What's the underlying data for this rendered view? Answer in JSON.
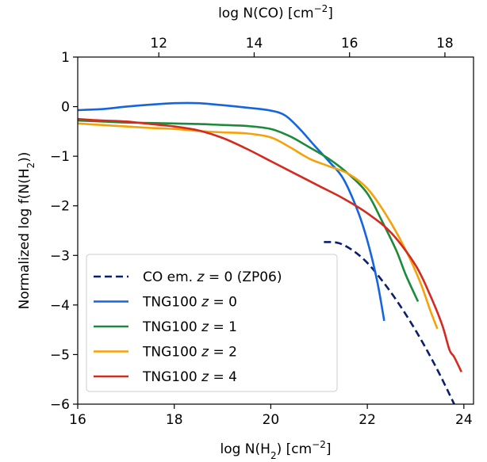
{
  "chart_data": {
    "type": "line",
    "xlabel_bottom": [
      "log N(H",
      "2",
      ") [cm",
      "−2",
      "]"
    ],
    "xlabel_top": [
      "log N(CO) [cm",
      "−2",
      "]"
    ],
    "ylabel": [
      "Normalized log f(N(H",
      "2",
      "))"
    ],
    "xlim": [
      16,
      24.2
    ],
    "ylim": [
      -6,
      1
    ],
    "top_xlim": [
      10.3,
      18.6
    ],
    "x_ticks": [
      16,
      18,
      20,
      22,
      24
    ],
    "x_tick_labels": [
      "16",
      "18",
      "20",
      "22",
      "24"
    ],
    "y_ticks": [
      1,
      0,
      -1,
      -2,
      -3,
      -4,
      -5,
      -6
    ],
    "y_tick_labels": [
      "1",
      "0",
      "−1",
      "−2",
      "−3",
      "−4",
      "−5",
      "−6"
    ],
    "top_ticks": [
      12,
      14,
      16,
      18
    ],
    "top_tick_labels": [
      "12",
      "14",
      "16",
      "18"
    ],
    "legend_position": "lower-left",
    "series": [
      {
        "name": "CO em. z = 0 (ZP06)",
        "legend": {
          "pre": "CO em. ",
          "var": "z",
          "post": " = 0 (ZP06)"
        },
        "color": "#0b1f6e",
        "dashed": true,
        "x": [
          21.1,
          21.4,
          21.7,
          22.0,
          22.3,
          22.6,
          22.9,
          23.2,
          23.5,
          23.8
        ],
        "y": [
          -2.73,
          -2.75,
          -2.9,
          -3.15,
          -3.5,
          -3.9,
          -4.35,
          -4.85,
          -5.4,
          -6.0
        ]
      },
      {
        "name": "TNG100 z = 0",
        "legend": {
          "pre": "TNG100 ",
          "var": "z",
          "post": " = 0"
        },
        "color": "#1565e0",
        "dashed": false,
        "x": [
          16.0,
          16.5,
          17.0,
          17.5,
          18.0,
          18.5,
          19.0,
          19.5,
          20.0,
          20.3,
          20.6,
          20.9,
          21.2,
          21.5,
          21.8,
          22.0,
          22.2,
          22.35
        ],
        "y": [
          -0.07,
          -0.05,
          0.0,
          0.04,
          0.07,
          0.07,
          0.03,
          -0.02,
          -0.08,
          -0.18,
          -0.45,
          -0.78,
          -1.1,
          -1.45,
          -2.1,
          -2.7,
          -3.5,
          -4.32
        ]
      },
      {
        "name": "TNG100 z = 1",
        "legend": {
          "pre": "TNG100 ",
          "var": "z",
          "post": " = 1"
        },
        "color": "#1b8a3a",
        "dashed": false,
        "x": [
          16.0,
          16.5,
          17.0,
          17.5,
          18.0,
          18.5,
          19.0,
          19.5,
          20.0,
          20.4,
          20.8,
          21.2,
          21.6,
          22.0,
          22.3,
          22.6,
          22.8,
          23.05
        ],
        "y": [
          -0.28,
          -0.3,
          -0.32,
          -0.33,
          -0.34,
          -0.35,
          -0.37,
          -0.39,
          -0.45,
          -0.6,
          -0.82,
          -1.05,
          -1.35,
          -1.75,
          -2.3,
          -2.9,
          -3.4,
          -3.93
        ]
      },
      {
        "name": "TNG100 z = 2",
        "legend": {
          "pre": "TNG100 ",
          "var": "z",
          "post": " = 2"
        },
        "color": "#f5a20a",
        "dashed": false,
        "x": [
          16.0,
          16.5,
          17.0,
          17.5,
          18.0,
          18.5,
          19.0,
          19.5,
          20.0,
          20.4,
          20.8,
          21.2,
          21.6,
          22.0,
          22.4,
          22.8,
          23.1,
          23.3,
          23.45
        ],
        "y": [
          -0.34,
          -0.37,
          -0.4,
          -0.43,
          -0.45,
          -0.49,
          -0.52,
          -0.54,
          -0.62,
          -0.82,
          -1.05,
          -1.2,
          -1.35,
          -1.65,
          -2.2,
          -2.9,
          -3.55,
          -4.1,
          -4.48
        ]
      },
      {
        "name": "TNG100 z = 4",
        "legend": {
          "pre": "TNG100 ",
          "var": "z",
          "post": " = 4"
        },
        "color": "#d42a1f",
        "dashed": false,
        "x": [
          16.0,
          16.5,
          17.0,
          17.5,
          18.0,
          18.5,
          19.0,
          19.5,
          20.0,
          20.5,
          21.0,
          21.5,
          22.0,
          22.5,
          23.0,
          23.3,
          23.55,
          23.7,
          23.8,
          23.95
        ],
        "y": [
          -0.25,
          -0.28,
          -0.3,
          -0.35,
          -0.4,
          -0.48,
          -0.63,
          -0.85,
          -1.1,
          -1.35,
          -1.6,
          -1.85,
          -2.15,
          -2.55,
          -3.2,
          -3.8,
          -4.4,
          -4.9,
          -5.05,
          -5.35
        ]
      }
    ]
  }
}
